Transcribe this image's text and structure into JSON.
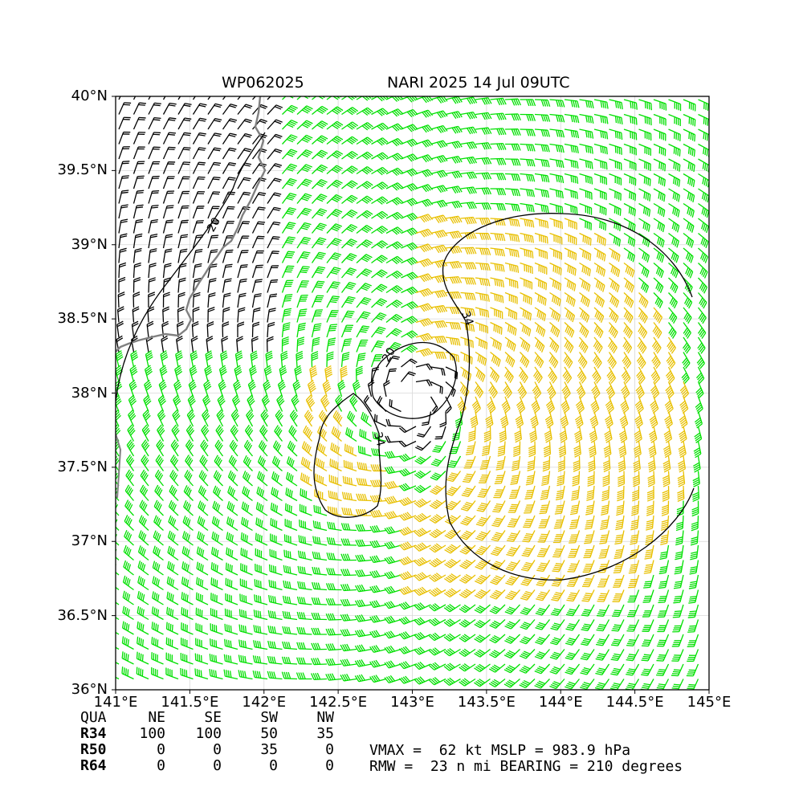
{
  "header": {
    "storm_id": "WP062025",
    "storm_title": "NARI 2025 14 Jul 09UTC"
  },
  "axes": {
    "lat_labels": [
      "40°N",
      "39.5°N",
      "39°N",
      "38.5°N",
      "38°N",
      "37.5°N",
      "37°N",
      "36.5°N",
      "36°N"
    ],
    "lat_values": [
      40,
      39.5,
      39,
      38.5,
      38,
      37.5,
      37,
      36.5,
      36
    ],
    "lon_labels": [
      "141°E",
      "141.5°E",
      "142°E",
      "142.5°E",
      "143°E",
      "143.5°E",
      "144°E",
      "144.5°E",
      "145°E"
    ],
    "lon_values": [
      141,
      141.5,
      142,
      142.5,
      143,
      143.5,
      144,
      144.5,
      145
    ],
    "lat_range": [
      36,
      40
    ],
    "lon_range": [
      141,
      145
    ]
  },
  "map": {
    "storm_center": {
      "lat": 37.95,
      "lon": 143.0
    },
    "barb_colors": {
      "lt34": "#000000",
      "34to50": "#00e000",
      "50to64": "#e8c000"
    },
    "coast_color": "#808080",
    "contour_labels": [
      "20",
      "34",
      "34",
      "20"
    ]
  },
  "wind_radii_table": {
    "header": [
      "QUA",
      "NE",
      "SE",
      "SW",
      "NW"
    ],
    "rows": [
      {
        "label": "R34",
        "values": [
          "100",
          "100",
          "50",
          "35"
        ]
      },
      {
        "label": "R50",
        "values": [
          "0",
          "0",
          "35",
          "0"
        ]
      },
      {
        "label": "R64",
        "values": [
          "0",
          "0",
          "0",
          "0"
        ]
      }
    ]
  },
  "intensity": {
    "line1": "VMAX =  62 kt MSLP = 983.9 hPa",
    "line2": "RMW =  23 n mi BEARING = 210 degrees"
  }
}
